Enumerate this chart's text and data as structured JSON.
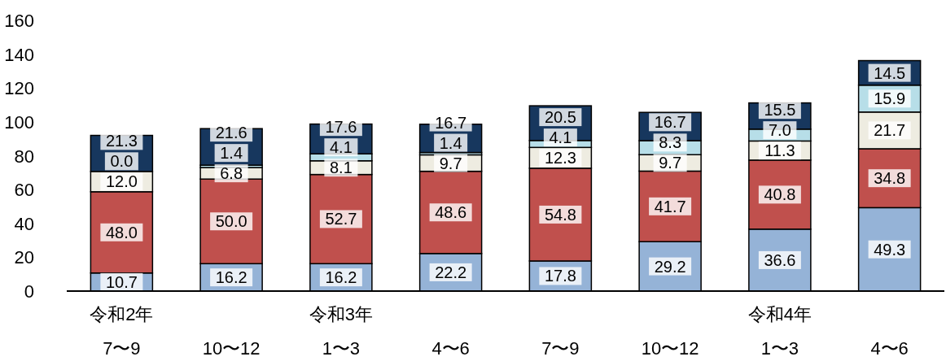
{
  "chart_data": {
    "type": "bar",
    "stacked": true,
    "categories": [
      "令和2年\n7〜9",
      "10〜12",
      "令和3年\n1〜3",
      "4〜6",
      "7〜9",
      "10〜12",
      "令和4年\n1〜3",
      "4〜6"
    ],
    "ylim": [
      0,
      160
    ],
    "yticks": [
      0,
      20,
      40,
      60,
      80,
      100,
      120,
      140,
      160
    ],
    "grid": false,
    "series": [
      {
        "color": "#95b3d7",
        "values": [
          10.7,
          16.2,
          16.2,
          22.2,
          17.8,
          29.2,
          36.6,
          49.3
        ],
        "value_labels": [
          "10.7",
          "16.2",
          "16.2",
          "22.2",
          "17.8",
          "29.2",
          "36.6",
          "49.3"
        ]
      },
      {
        "color": "#c0504d",
        "values": [
          48.0,
          50.0,
          52.7,
          48.6,
          54.8,
          41.7,
          40.8,
          34.8
        ],
        "value_labels": [
          "48.0",
          "50.0",
          "52.7",
          "48.6",
          "54.8",
          "41.7",
          "40.8",
          "34.8"
        ]
      },
      {
        "color": "#eeece1",
        "values": [
          12.0,
          6.8,
          8.1,
          9.7,
          12.3,
          9.7,
          11.3,
          21.7
        ],
        "value_labels": [
          "12.0",
          "6.8",
          "8.1",
          "9.7",
          "12.3",
          "9.7",
          "11.3",
          "21.7"
        ]
      },
      {
        "color": "#b7dee8",
        "values": [
          0.0,
          1.4,
          4.1,
          1.4,
          4.1,
          8.3,
          7.0,
          15.9
        ],
        "value_labels": [
          "0.0",
          "1.4",
          "4.1",
          "1.4",
          "4.1",
          "8.3",
          "7.0",
          "15.9"
        ]
      },
      {
        "color": "#17375e",
        "values": [
          21.3,
          21.6,
          17.6,
          16.7,
          20.5,
          16.7,
          15.5,
          14.5
        ],
        "value_labels": [
          "21.3",
          "21.6",
          "17.6",
          "16.7",
          "20.5",
          "16.7",
          "15.5",
          "14.5"
        ]
      }
    ]
  }
}
